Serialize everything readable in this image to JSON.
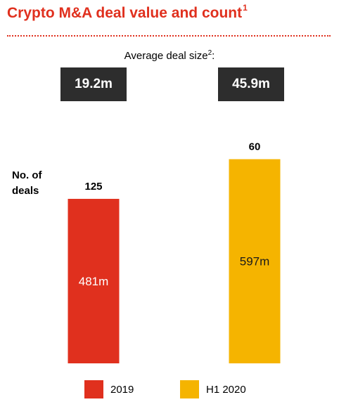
{
  "title": {
    "text": "Crypto M&A deal value and count",
    "footnote": "1"
  },
  "avg_deal_size": {
    "label": "Average deal size",
    "footnote": "2",
    "suffix": ":",
    "values": [
      "19.2m",
      "45.9m"
    ]
  },
  "count_label": "No. of deals",
  "colors": {
    "title": "#e0301e",
    "box": "#2d2d2d",
    "2019": "#e0301e",
    "H1 2020": "#f5b400"
  },
  "chart_data": {
    "type": "bar",
    "categories": [
      "2019",
      "H1 2020"
    ],
    "series": [
      {
        "name": "Deal value",
        "values": [
          481,
          597
        ],
        "labels": [
          "481m",
          "597m"
        ]
      },
      {
        "name": "No. of deals",
        "values": [
          125,
          60
        ]
      }
    ],
    "legend": [
      "2019",
      "H1 2020"
    ],
    "legend_position": "bottom"
  }
}
